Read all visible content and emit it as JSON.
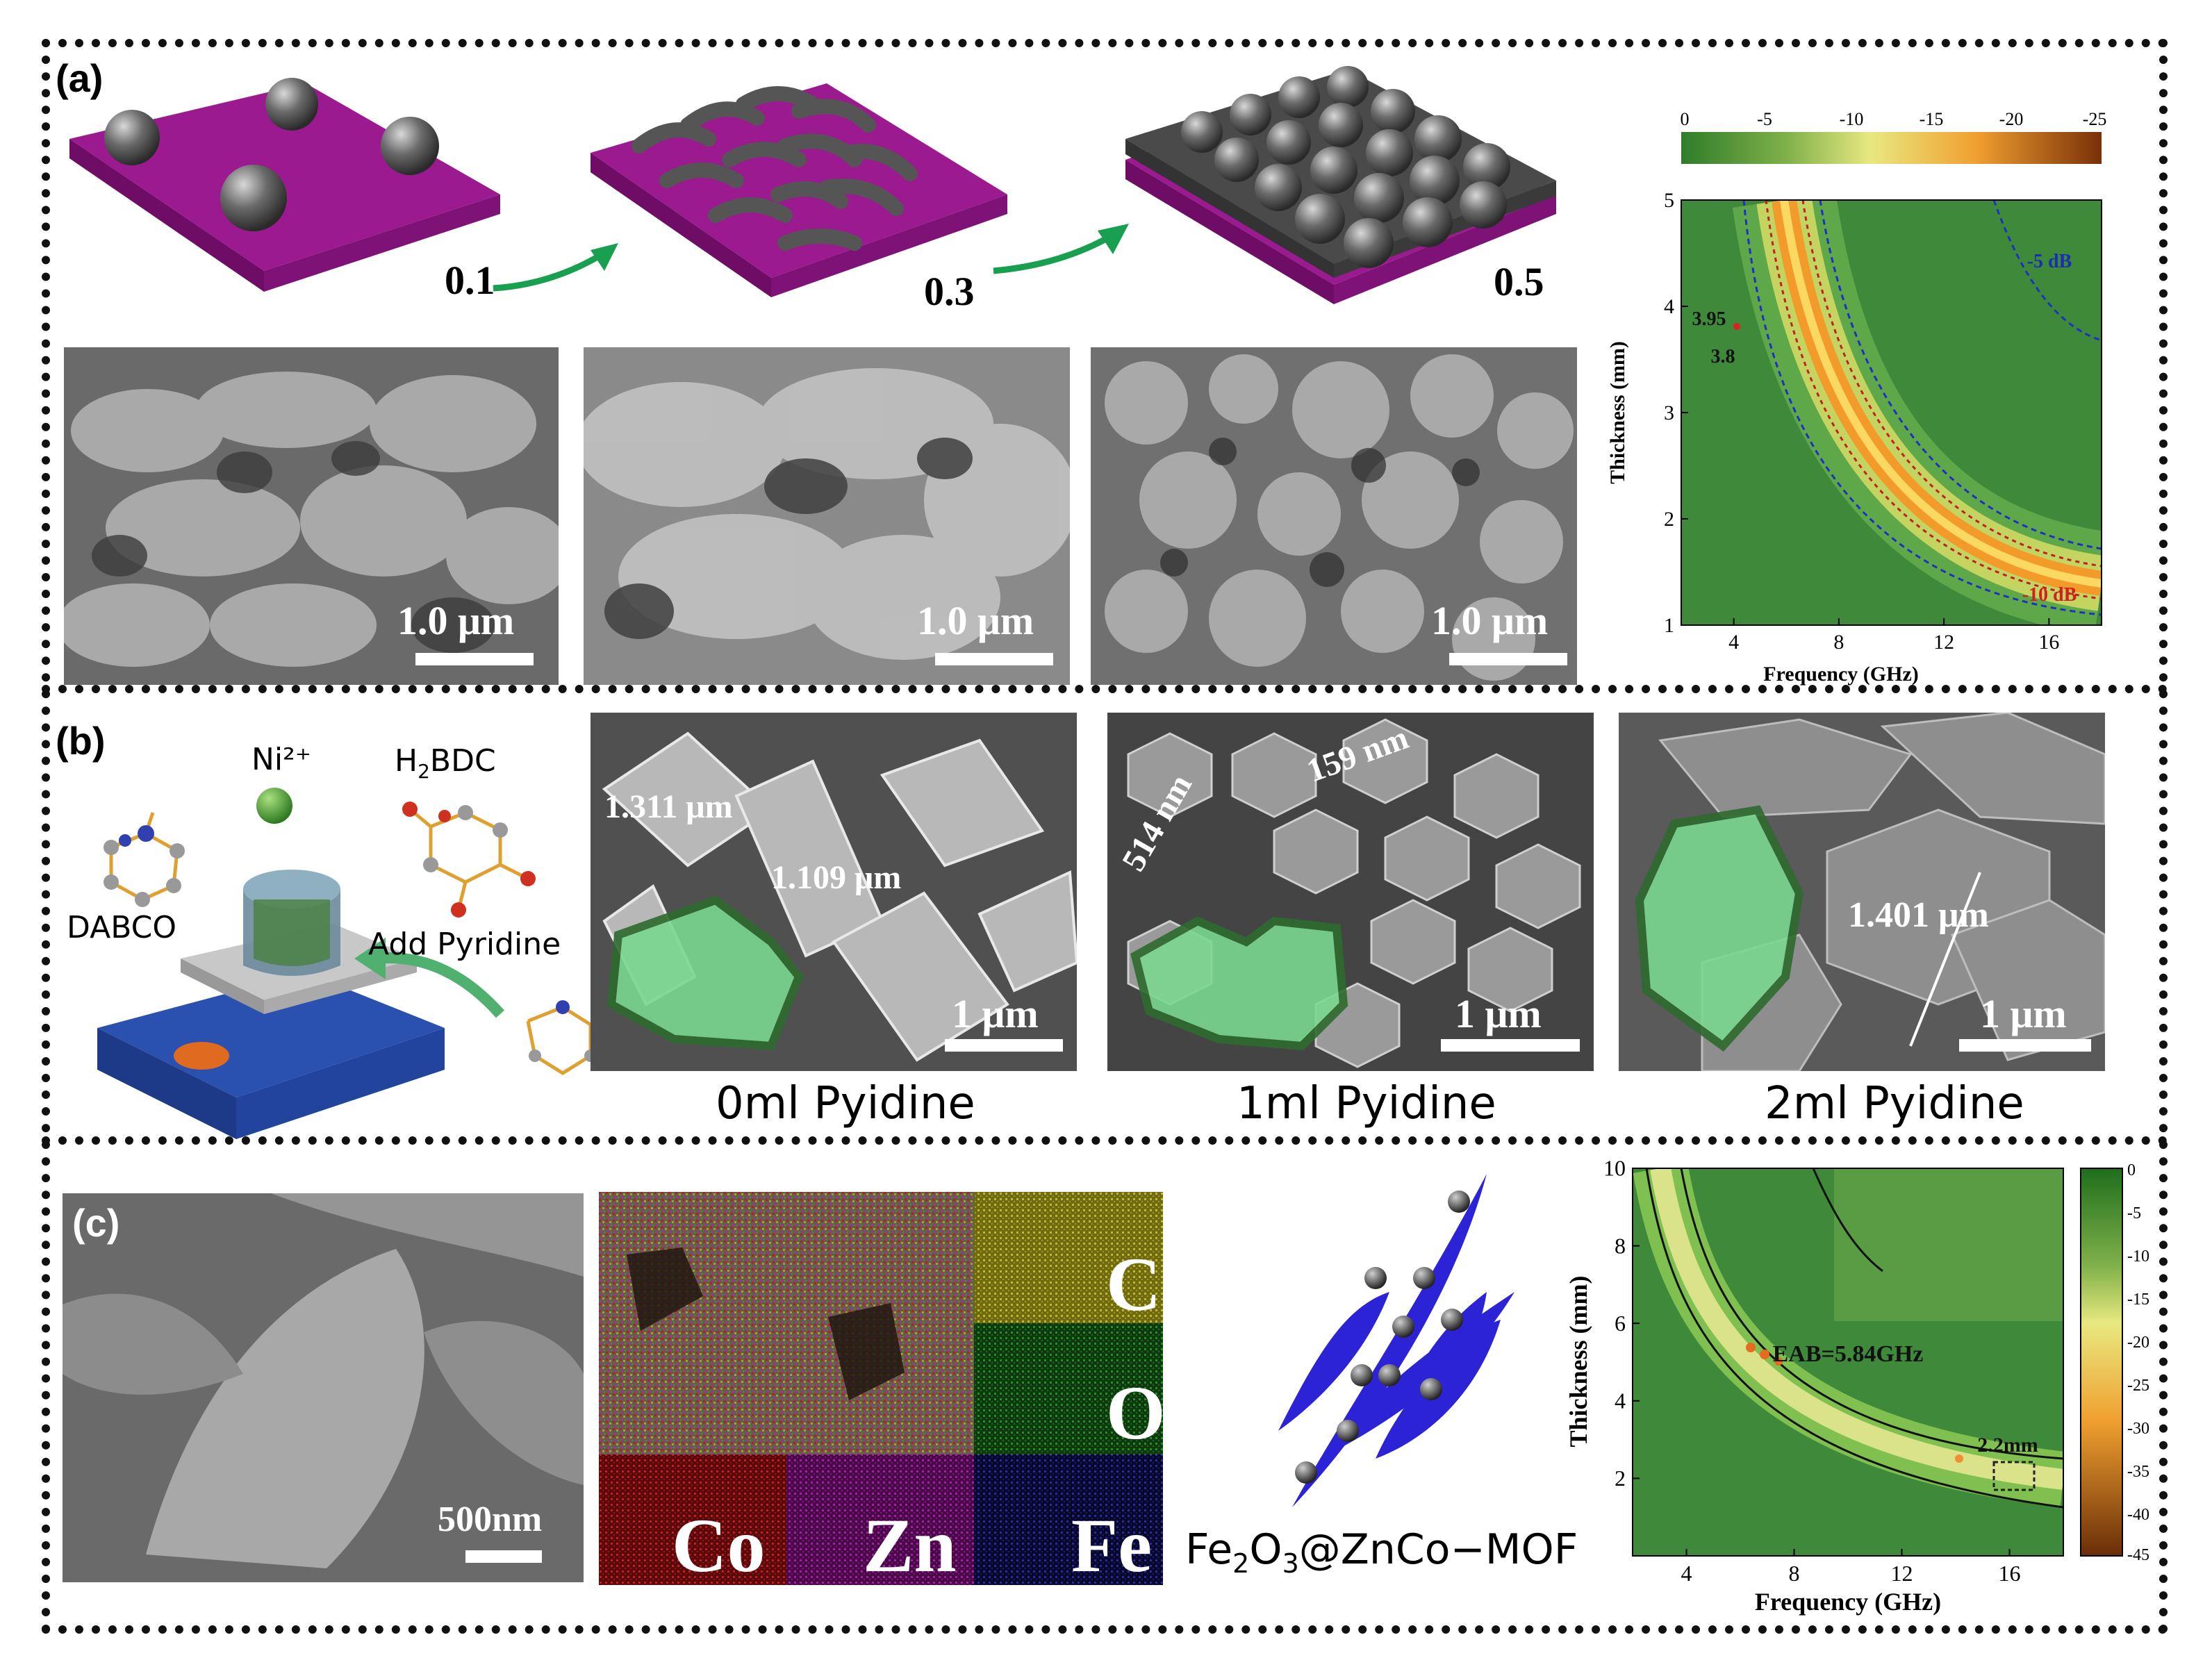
{
  "panels": {
    "a": {
      "label": "(a)",
      "ratios": [
        "0.1",
        "0.3",
        "0.5"
      ],
      "sem_scale": [
        "1.0 μm",
        "1.0 μm",
        "1.0 μm"
      ],
      "colorbar_ticks": [
        "0",
        "-5",
        "-10",
        "-15",
        "-20",
        "-25"
      ]
    },
    "b": {
      "label": "(b)",
      "reagents": {
        "ni": "Ni²⁺",
        "h2bdc_pre": "H",
        "h2bdc_sub": "2",
        "h2bdc_post": "BDC",
        "dabco": "DABCO",
        "add": "Add Pyridine"
      },
      "sem": [
        {
          "caption": "0ml Pyidine",
          "scale": "1 μm",
          "dims": [
            "1.311 μm",
            "1.109 μm"
          ]
        },
        {
          "caption": "1ml Pyidine",
          "scale": "1 μm",
          "dims": [
            "514 nm",
            "159 nm"
          ]
        },
        {
          "caption": "2ml Pyidine",
          "scale": "1 μm",
          "dims": [
            "1.401 μm"
          ]
        }
      ]
    },
    "c": {
      "label": "(c)",
      "sem_scale": "500nm",
      "eds_elements": [
        "C",
        "O",
        "Co",
        "Zn",
        "Fe"
      ],
      "formula": {
        "p1": "Fe",
        "s1": "2",
        "p2": "O",
        "s2": "3",
        "p3": "@ZnCo−MOF"
      },
      "colorbar_ticks": [
        "0",
        "-5",
        "-10",
        "-15",
        "-20",
        "-25",
        "-30",
        "-35",
        "-40",
        "-45"
      ]
    }
  },
  "chart_data": [
    {
      "type": "heatmap",
      "title": "",
      "xlabel": "Frequency (GHz)",
      "ylabel": "Thickness (mm)",
      "xlim": [
        2,
        18
      ],
      "ylim": [
        1,
        5
      ],
      "xticks": [
        "4",
        "8",
        "12",
        "16"
      ],
      "yticks": [
        "1",
        "2",
        "3",
        "4",
        "5"
      ],
      "colorbar_range": [
        0,
        -25
      ],
      "contours": [
        "-5 dB",
        "-10 dB"
      ],
      "annotations": [
        "3.95",
        "3.8"
      ],
      "colors": {
        "low": "#2f7d2a",
        "mid": "#e8e070",
        "high": "#8a3a08"
      }
    },
    {
      "type": "heatmap",
      "title": "",
      "xlabel": "Frequency (GHz)",
      "ylabel": "Thickness (mm)",
      "xlim": [
        2,
        18
      ],
      "ylim": [
        0,
        10
      ],
      "xticks": [
        "4",
        "8",
        "12",
        "16"
      ],
      "yticks": [
        "2",
        "4",
        "6",
        "8",
        "10"
      ],
      "colorbar_range": [
        0,
        -45
      ],
      "annotations": [
        "EAB=5.84GHz",
        "2.2mm"
      ],
      "colors": {
        "low": "#2f7d2a",
        "mid": "#e8e070",
        "high": "#8a3a08"
      }
    }
  ]
}
